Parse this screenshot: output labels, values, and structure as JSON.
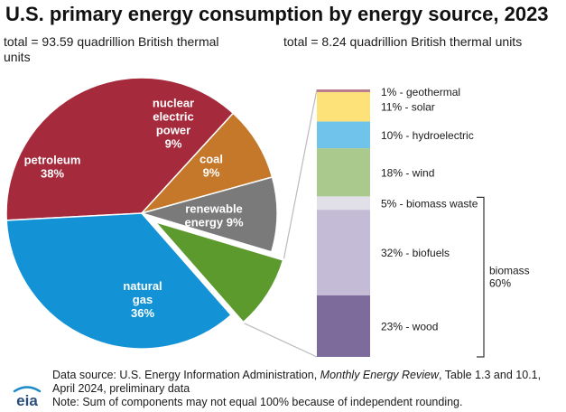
{
  "title": "U.S. primary energy consumption by energy source, 2023",
  "subtitle_left": "total = 93.59 quadrillion British thermal units",
  "subtitle_right": "total = 8.24 quadrillion British thermal units",
  "footer": {
    "line1_prefix": "Data source: U.S. Energy Information Administration, ",
    "line1_italic": "Monthly Energy Review",
    "line1_suffix": ", Table 1.3 and 10.1,",
    "line2": "April 2024, preliminary data",
    "line3": "Note: Sum of components may not equal 100% because of independent rounding."
  },
  "logo_text": "eia",
  "colors": {
    "petroleum": "#a52a3c",
    "nuclear": "#c5772a",
    "coal": "#7a7a7a",
    "renewable": "#5d9a2e",
    "natural_gas": "#1492d6",
    "geothermal": "#b87b8e",
    "solar": "#fde27a",
    "hydroelectric": "#70c3ea",
    "wind": "#a9ca8c",
    "biomass_waste": "#e1dfe8",
    "biofuels": "#c4bcd6",
    "wood": "#7c6b9b",
    "connector": "#bbbbbb"
  },
  "chart_data": [
    {
      "type": "pie",
      "slices": [
        {
          "key": "petroleum",
          "label_lines": [
            "petroleum",
            "38%"
          ],
          "value": 38
        },
        {
          "key": "nuclear",
          "label_lines": [
            "nuclear",
            "electric",
            "power",
            "9%"
          ],
          "value": 9
        },
        {
          "key": "coal",
          "label_lines": [
            "coal",
            "9%"
          ],
          "value": 9
        },
        {
          "key": "renewable",
          "label_lines": [
            "renewable",
            "energy 9%"
          ],
          "value": 9,
          "exploded": true
        },
        {
          "key": "natural_gas",
          "label_lines": [
            "natural",
            "gas",
            "36%"
          ],
          "value": 36
        }
      ]
    },
    {
      "type": "bar",
      "stacked": true,
      "segments": [
        {
          "key": "geothermal",
          "label": "1% - geothermal",
          "value": 1
        },
        {
          "key": "solar",
          "label": "11% - solar",
          "value": 11
        },
        {
          "key": "hydroelectric",
          "label": "10% - hydroelectric",
          "value": 10
        },
        {
          "key": "wind",
          "label": "18% - wind",
          "value": 18
        },
        {
          "key": "biomass_waste",
          "label": "5% - biomass waste",
          "value": 5
        },
        {
          "key": "biofuels",
          "label": "32% - biofuels",
          "value": 32
        },
        {
          "key": "wood",
          "label": "23% - wood",
          "value": 23
        }
      ],
      "group": {
        "label_lines": [
          "biomass",
          "60%"
        ],
        "members": [
          "biomass_waste",
          "biofuels",
          "wood"
        ]
      }
    }
  ]
}
